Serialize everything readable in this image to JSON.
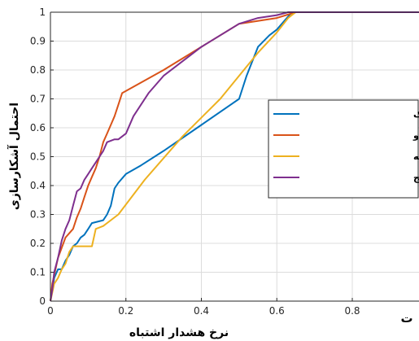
{
  "chart_data": {
    "type": "line",
    "xlabel": "نرخ هشدار اشتباه",
    "ylabel": "احتمال آشکارسازی",
    "xlim": [
      0,
      1
    ],
    "ylim": [
      0,
      1
    ],
    "grid": true,
    "legend_position": "right",
    "xticks": [
      0,
      0.2,
      0.4,
      0.6,
      0.8
    ],
    "xtick_labels": [
      "0",
      "0.2",
      "0.4",
      "0.6",
      "0.8"
    ],
    "yticks": [
      0,
      0.1,
      0.2,
      0.3,
      0.4,
      0.5,
      0.6,
      0.7,
      0.8,
      0.9,
      1
    ],
    "ytick_labels": [
      "0",
      "0.1",
      "0.2",
      "0.3",
      "0.4",
      "0.5",
      "0.6",
      "0.7",
      "0.8",
      "0.9",
      "1"
    ],
    "corner_text": "ت",
    "series": [
      {
        "name": "نمونه طیفی-زمانی یک",
        "color": "#0072BD",
        "points": [
          [
            0,
            0
          ],
          [
            0.005,
            0.04
          ],
          [
            0.01,
            0.08
          ],
          [
            0.02,
            0.11
          ],
          [
            0.03,
            0.11
          ],
          [
            0.04,
            0.14
          ],
          [
            0.05,
            0.16
          ],
          [
            0.06,
            0.19
          ],
          [
            0.07,
            0.2
          ],
          [
            0.08,
            0.22
          ],
          [
            0.09,
            0.23
          ],
          [
            0.1,
            0.25
          ],
          [
            0.11,
            0.27
          ],
          [
            0.14,
            0.28
          ],
          [
            0.15,
            0.3
          ],
          [
            0.16,
            0.33
          ],
          [
            0.17,
            0.39
          ],
          [
            0.18,
            0.41
          ],
          [
            0.2,
            0.44
          ],
          [
            0.24,
            0.47
          ],
          [
            0.3,
            0.52
          ],
          [
            0.4,
            0.61
          ],
          [
            0.5,
            0.7
          ],
          [
            0.52,
            0.78
          ],
          [
            0.55,
            0.88
          ],
          [
            0.58,
            0.92
          ],
          [
            0.6,
            0.94
          ],
          [
            0.62,
            0.97
          ],
          [
            0.64,
            1
          ],
          [
            1,
            1
          ]
        ]
      },
      {
        "name": "نمونه طیفی-زمانی دو",
        "color": "#D95319",
        "points": [
          [
            0,
            0
          ],
          [
            0.005,
            0.06
          ],
          [
            0.02,
            0.15
          ],
          [
            0.04,
            0.22
          ],
          [
            0.06,
            0.25
          ],
          [
            0.07,
            0.29
          ],
          [
            0.08,
            0.32
          ],
          [
            0.09,
            0.36
          ],
          [
            0.1,
            0.4
          ],
          [
            0.11,
            0.43
          ],
          [
            0.12,
            0.46
          ],
          [
            0.13,
            0.5
          ],
          [
            0.14,
            0.55
          ],
          [
            0.15,
            0.58
          ],
          [
            0.16,
            0.61
          ],
          [
            0.17,
            0.64
          ],
          [
            0.18,
            0.68
          ],
          [
            0.19,
            0.72
          ],
          [
            0.3,
            0.8
          ],
          [
            0.4,
            0.88
          ],
          [
            0.5,
            0.96
          ],
          [
            0.6,
            0.98
          ],
          [
            0.65,
            1
          ],
          [
            1,
            1
          ]
        ]
      },
      {
        "name": "نمونه طیفی-زمانی سه",
        "color": "#EDB120",
        "points": [
          [
            0,
            0
          ],
          [
            0.005,
            0.03
          ],
          [
            0.01,
            0.06
          ],
          [
            0.02,
            0.08
          ],
          [
            0.03,
            0.11
          ],
          [
            0.04,
            0.13
          ],
          [
            0.05,
            0.17
          ],
          [
            0.06,
            0.19
          ],
          [
            0.11,
            0.19
          ],
          [
            0.12,
            0.25
          ],
          [
            0.14,
            0.26
          ],
          [
            0.18,
            0.3
          ],
          [
            0.25,
            0.42
          ],
          [
            0.35,
            0.57
          ],
          [
            0.45,
            0.7
          ],
          [
            0.55,
            0.86
          ],
          [
            0.6,
            0.93
          ],
          [
            0.63,
            0.98
          ],
          [
            0.65,
            1
          ],
          [
            1,
            1
          ]
        ]
      },
      {
        "name": "میانگین وزندار نتایج",
        "color": "#7E2F8E",
        "points": [
          [
            0,
            0
          ],
          [
            0.005,
            0.04
          ],
          [
            0.01,
            0.1
          ],
          [
            0.02,
            0.15
          ],
          [
            0.03,
            0.21
          ],
          [
            0.04,
            0.25
          ],
          [
            0.05,
            0.28
          ],
          [
            0.06,
            0.33
          ],
          [
            0.07,
            0.38
          ],
          [
            0.08,
            0.39
          ],
          [
            0.09,
            0.42
          ],
          [
            0.1,
            0.44
          ],
          [
            0.11,
            0.46
          ],
          [
            0.12,
            0.48
          ],
          [
            0.13,
            0.5
          ],
          [
            0.14,
            0.52
          ],
          [
            0.15,
            0.55
          ],
          [
            0.17,
            0.56
          ],
          [
            0.18,
            0.56
          ],
          [
            0.2,
            0.58
          ],
          [
            0.22,
            0.64
          ],
          [
            0.26,
            0.72
          ],
          [
            0.3,
            0.78
          ],
          [
            0.4,
            0.88
          ],
          [
            0.5,
            0.96
          ],
          [
            0.55,
            0.98
          ],
          [
            0.6,
            0.99
          ],
          [
            0.63,
            1
          ],
          [
            1,
            1
          ]
        ]
      }
    ]
  }
}
